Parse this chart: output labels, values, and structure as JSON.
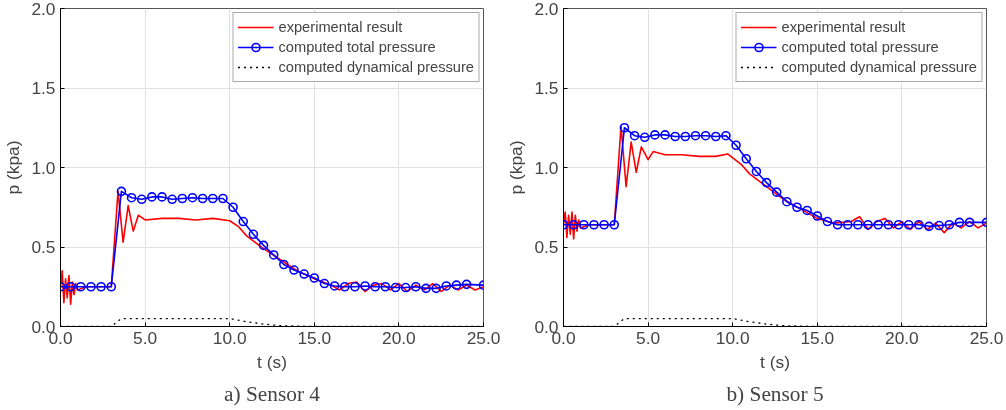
{
  "chart_data": [
    {
      "type": "line",
      "title": "a) Sensor 4",
      "xlabel": "t (s)",
      "ylabel": "p (kpa)",
      "xlim": [
        0,
        25
      ],
      "ylim": [
        0,
        2
      ],
      "xticks": [
        {
          "value": 0,
          "label": "0.0"
        },
        {
          "value": 5,
          "label": "5.0"
        },
        {
          "value": 10,
          "label": "10.0"
        },
        {
          "value": 15,
          "label": "15.0"
        },
        {
          "value": 20,
          "label": "20.0"
        },
        {
          "value": 25,
          "label": "25.0"
        }
      ],
      "yticks": [
        {
          "value": 0,
          "label": "0.0"
        },
        {
          "value": 0.5,
          "label": "0.5"
        },
        {
          "value": 1,
          "label": "1.0"
        },
        {
          "value": 1.5,
          "label": "1.5"
        },
        {
          "value": 2,
          "label": "2.0"
        }
      ],
      "grid": true,
      "legend": "top right",
      "series": [
        {
          "name": "experimental result",
          "color": "#ff0000",
          "line_style": "solid",
          "marker": "none",
          "x": [
            0,
            0.1,
            0.2,
            0.3,
            0.4,
            0.5,
            0.6,
            0.7,
            0.8,
            0.9,
            1.0,
            1.5,
            3.0,
            3.4,
            3.7,
            4.0,
            4.3,
            4.6,
            5.0,
            6.0,
            7.0,
            8.0,
            9.0,
            10.0,
            10.5,
            11.0,
            12.0,
            13.0,
            14.0,
            15.0,
            16.0,
            16.5,
            17.0,
            17.5,
            18.0,
            18.5,
            19.0,
            19.5,
            20.0,
            20.5,
            21.0,
            21.5,
            22.0,
            22.5,
            23.0,
            23.5,
            24.0,
            24.5,
            25
          ],
          "values": [
            0.25,
            0.35,
            0.15,
            0.3,
            0.18,
            0.32,
            0.14,
            0.28,
            0.2,
            0.27,
            0.23,
            0.25,
            0.25,
            0.85,
            0.53,
            0.76,
            0.6,
            0.7,
            0.67,
            0.68,
            0.68,
            0.67,
            0.68,
            0.665,
            0.63,
            0.57,
            0.49,
            0.42,
            0.35,
            0.3,
            0.26,
            0.23,
            0.27,
            0.28,
            0.22,
            0.26,
            0.27,
            0.23,
            0.27,
            0.22,
            0.26,
            0.23,
            0.27,
            0.22,
            0.26,
            0.23,
            0.26,
            0.23,
            0.25
          ]
        },
        {
          "name": "computed total pressure",
          "color": "#0000ff",
          "line_style": "solid",
          "marker": "circle",
          "x": [
            0,
            0.6,
            1.2,
            1.8,
            2.4,
            3.0,
            3.6,
            4.2,
            4.8,
            5.4,
            6.0,
            6.6,
            7.2,
            7.8,
            8.4,
            9.0,
            9.6,
            10.2,
            10.8,
            11.4,
            12.0,
            12.6,
            13.2,
            13.8,
            14.4,
            15.0,
            15.6,
            16.2,
            16.8,
            17.4,
            18.0,
            18.6,
            19.2,
            19.8,
            20.4,
            21.0,
            21.6,
            22.2,
            22.8,
            23.4,
            24.0,
            25
          ],
          "values": [
            0.25,
            0.25,
            0.25,
            0.25,
            0.25,
            0.25,
            0.85,
            0.81,
            0.8,
            0.815,
            0.815,
            0.8,
            0.805,
            0.81,
            0.805,
            0.805,
            0.805,
            0.75,
            0.66,
            0.58,
            0.51,
            0.45,
            0.39,
            0.355,
            0.33,
            0.305,
            0.27,
            0.255,
            0.25,
            0.25,
            0.255,
            0.25,
            0.25,
            0.245,
            0.245,
            0.25,
            0.24,
            0.24,
            0.255,
            0.26,
            0.265,
            0.26
          ]
        },
        {
          "name": "computed dynamical pressure",
          "color": "#000000",
          "line_style": "dotted",
          "marker": "none",
          "x": [
            0,
            3.0,
            3.6,
            10.0,
            11.0,
            12.0,
            13.0,
            15.0,
            25
          ],
          "values": [
            0,
            0,
            0.05,
            0.05,
            0.03,
            0.015,
            0.005,
            0,
            0
          ]
        }
      ]
    },
    {
      "type": "line",
      "title": "b) Sensor 5",
      "xlabel": "t (s)",
      "ylabel": "p (kpa)",
      "xlim": [
        0,
        25
      ],
      "ylim": [
        0,
        2
      ],
      "xticks": [
        {
          "value": 0,
          "label": "0.0"
        },
        {
          "value": 5,
          "label": "5.0"
        },
        {
          "value": 10,
          "label": "10.0"
        },
        {
          "value": 15,
          "label": "15.0"
        },
        {
          "value": 20,
          "label": "20.0"
        },
        {
          "value": 25,
          "label": "25.0"
        }
      ],
      "yticks": [
        {
          "value": 0,
          "label": "0.0"
        },
        {
          "value": 0.5,
          "label": "0.5"
        },
        {
          "value": 1,
          "label": "1.0"
        },
        {
          "value": 1.5,
          "label": "1.5"
        },
        {
          "value": 2,
          "label": "2.0"
        }
      ],
      "grid": true,
      "legend": "top right",
      "series": [
        {
          "name": "experimental result",
          "color": "#ff0000",
          "line_style": "solid",
          "marker": "none",
          "x": [
            0,
            0.1,
            0.2,
            0.3,
            0.4,
            0.5,
            0.6,
            0.7,
            0.8,
            0.9,
            1.0,
            1.5,
            3.0,
            3.4,
            3.7,
            4.0,
            4.3,
            4.6,
            5.0,
            5.3,
            6.0,
            7.0,
            8.0,
            9.0,
            9.7,
            10.5,
            11.0,
            12.0,
            13.0,
            14.0,
            15.0,
            16.0,
            17.0,
            17.5,
            18.0,
            18.5,
            19.0,
            19.5,
            20.0,
            20.5,
            21.0,
            21.5,
            22.0,
            22.5,
            23.0,
            23.5,
            24.0,
            24.5,
            25
          ],
          "values": [
            0.64,
            0.72,
            0.56,
            0.7,
            0.58,
            0.72,
            0.55,
            0.7,
            0.6,
            0.67,
            0.62,
            0.64,
            0.64,
            1.26,
            0.88,
            1.16,
            0.97,
            1.13,
            1.05,
            1.1,
            1.08,
            1.08,
            1.07,
            1.07,
            1.085,
            1.02,
            0.96,
            0.88,
            0.8,
            0.74,
            0.68,
            0.65,
            0.66,
            0.69,
            0.61,
            0.66,
            0.68,
            0.62,
            0.66,
            0.61,
            0.66,
            0.61,
            0.65,
            0.59,
            0.65,
            0.62,
            0.66,
            0.62,
            0.65
          ]
        },
        {
          "name": "computed total pressure",
          "color": "#0000ff",
          "line_style": "solid",
          "marker": "circle",
          "x": [
            0,
            0.6,
            1.2,
            1.8,
            2.4,
            3.0,
            3.6,
            4.2,
            4.8,
            5.4,
            6.0,
            6.6,
            7.2,
            7.8,
            8.4,
            9.0,
            9.6,
            10.2,
            10.8,
            11.4,
            12.0,
            12.6,
            13.2,
            13.8,
            14.4,
            15.0,
            15.6,
            16.2,
            16.8,
            17.4,
            18.0,
            18.6,
            19.2,
            19.8,
            20.4,
            21.0,
            21.6,
            22.2,
            22.8,
            23.4,
            24.0,
            25
          ],
          "values": [
            0.64,
            0.64,
            0.64,
            0.64,
            0.64,
            0.64,
            1.25,
            1.2,
            1.19,
            1.205,
            1.205,
            1.195,
            1.195,
            1.2,
            1.2,
            1.195,
            1.2,
            1.14,
            1.055,
            0.975,
            0.905,
            0.845,
            0.785,
            0.75,
            0.73,
            0.695,
            0.66,
            0.64,
            0.64,
            0.64,
            0.64,
            0.64,
            0.64,
            0.64,
            0.64,
            0.64,
            0.63,
            0.635,
            0.64,
            0.655,
            0.655,
            0.655
          ]
        },
        {
          "name": "computed dynamical pressure",
          "color": "#000000",
          "line_style": "dotted",
          "marker": "none",
          "x": [
            0,
            3.0,
            3.6,
            10.0,
            11.0,
            12.0,
            13.0,
            15.0,
            25
          ],
          "values": [
            0,
            0,
            0.05,
            0.05,
            0.03,
            0.015,
            0.005,
            0,
            0
          ]
        }
      ]
    }
  ]
}
